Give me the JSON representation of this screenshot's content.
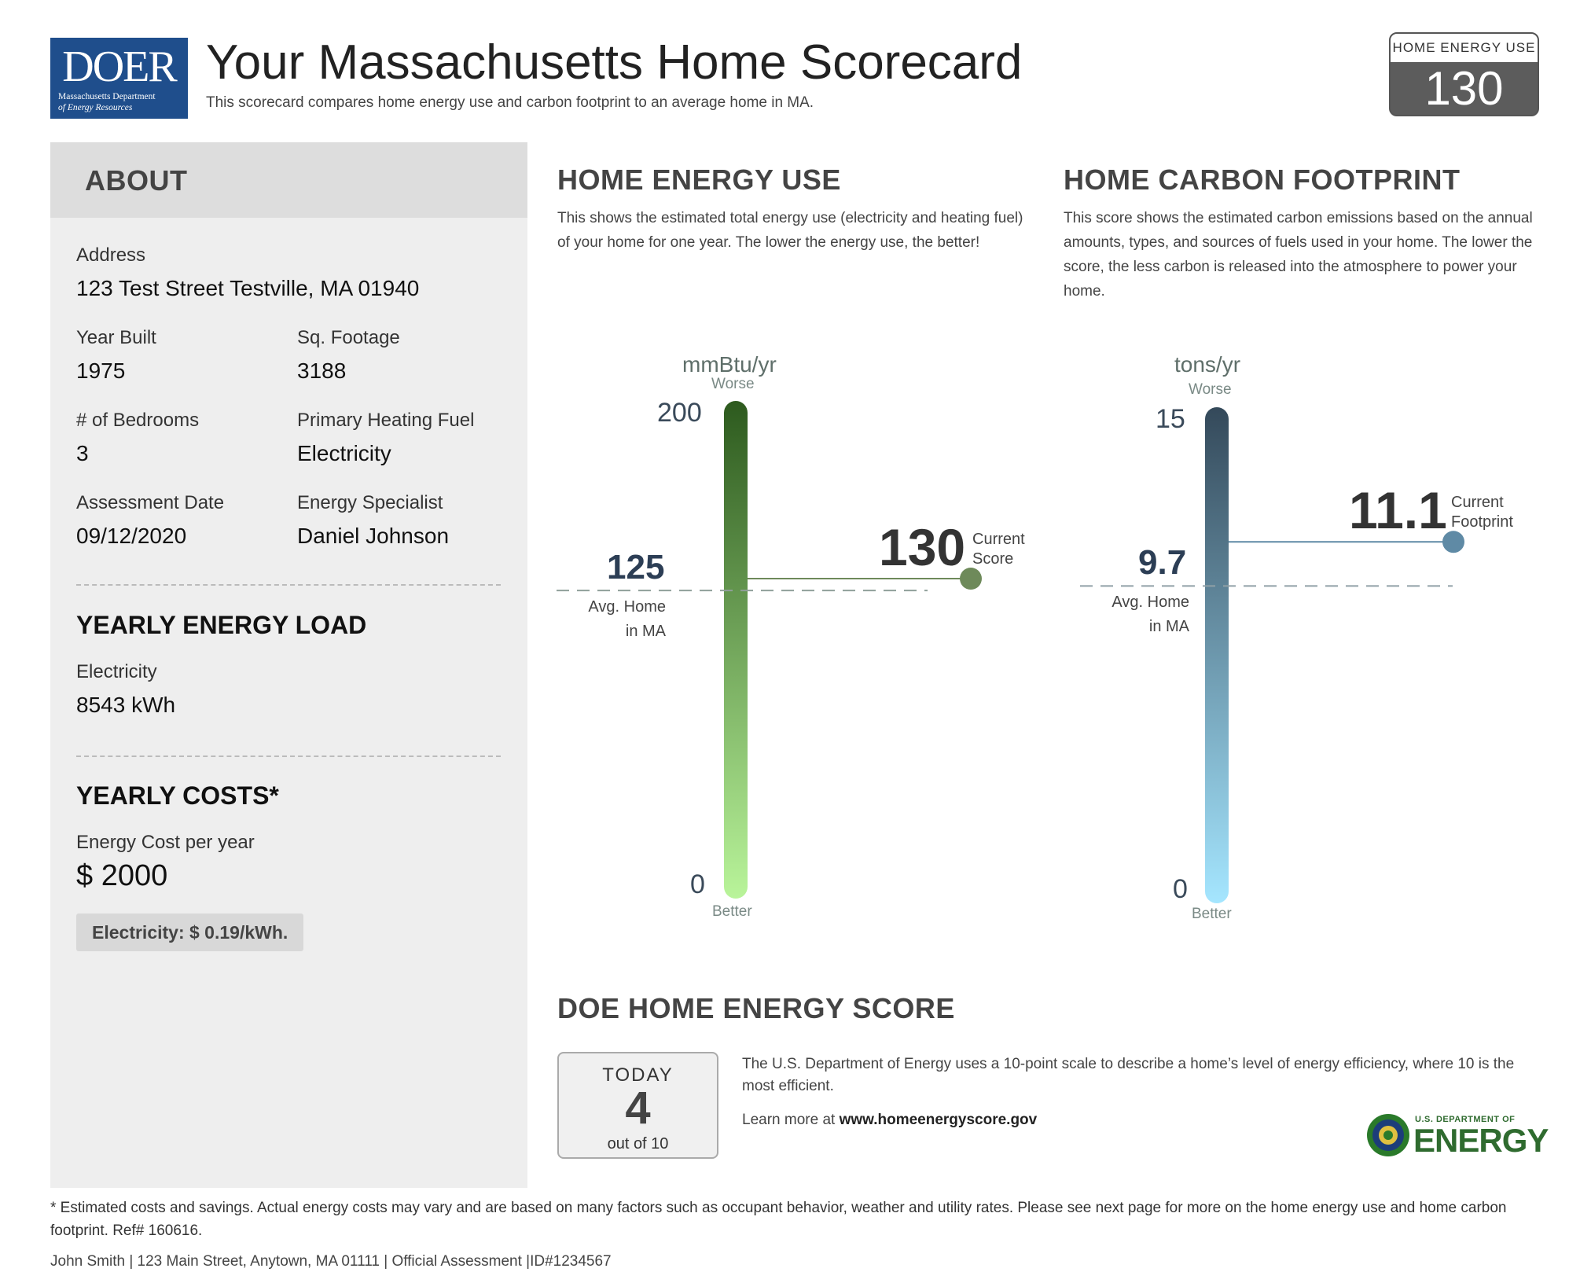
{
  "header": {
    "logo_text": "DOER",
    "logo_subtitle_line1": "Massachusetts Department",
    "logo_subtitle_line2": "of Energy Resources",
    "title": "Your Massachusetts Home Scorecard",
    "subtitle": "This scorecard compares home energy use and carbon footprint to an average home in MA.",
    "score_label": "HOME ENERGY USE",
    "score_value": "130"
  },
  "about": {
    "title": "ABOUT",
    "address_label": "Address",
    "address_value": "123 Test Street Testville, MA 01940",
    "year_built_label": "Year Built",
    "year_built_value": "1975",
    "sqft_label": "Sq. Footage",
    "sqft_value": "3188",
    "bedrooms_label": "# of Bedrooms",
    "bedrooms_value": "3",
    "fuel_label": "Primary Heating Fuel",
    "fuel_value": "Electricity",
    "assessment_label": "Assessment Date",
    "assessment_value": "09/12/2020",
    "specialist_label": "Energy Specialist",
    "specialist_value": "Daniel Johnson"
  },
  "load": {
    "title": "YEARLY ENERGY LOAD",
    "electricity_label": "Electricity",
    "electricity_value": "8543 kWh"
  },
  "costs": {
    "title": "YEARLY COSTS*",
    "cost_label": "Energy Cost per year",
    "cost_value": "$ 2000",
    "rate": "Electricity: $ 0.19/kWh."
  },
  "energy_use": {
    "title": "HOME ENERGY USE",
    "description": "This shows the estimated total energy use (electricity and heating fuel) of your home for one year. The lower the energy use, the better!",
    "unit": "mmBtu/yr",
    "worse": "Worse",
    "better": "Better",
    "max_label": "200",
    "min_label": "0",
    "max": 200,
    "min": 0,
    "avg": 125,
    "avg_text": "125",
    "avg_label_line1": "Avg. Home",
    "avg_label_line2": "in MA",
    "current": 130,
    "current_text": "130",
    "current_label_line1": "Current",
    "current_label_line2": "Score",
    "color_top": "#2d5a1e",
    "color_bottom": "#b9f49a",
    "marker_color": "#6e8a5a"
  },
  "carbon": {
    "title": "HOME CARBON FOOTPRINT",
    "description": "This score shows the estimated carbon emissions based on the annual amounts, types, and sources of fuels used in your home. The lower the score, the less carbon is released into the atmosphere to power your home.",
    "unit": "tons/yr",
    "worse": "Worse",
    "better": "Better",
    "max_label": "15",
    "min_label": "0",
    "max": 15,
    "min": 0,
    "avg": 9.7,
    "avg_text": "9.7",
    "avg_label_line1": "Avg. Home",
    "avg_label_line2": "in MA",
    "current": 11.1,
    "current_text": "11.1",
    "current_label_line1": "Current",
    "current_label_line2": "Footprint",
    "color_top": "#34495a",
    "color_bottom": "#a5e6ff",
    "marker_color": "#5f8aa5"
  },
  "doe": {
    "title": "DOE HOME ENERGY SCORE",
    "today_label": "TODAY",
    "score": "4",
    "out_of": "out of 10",
    "description": "The U.S. Department of Energy uses a 10-point scale to describe a home’s level of energy efficiency, where 10 is the most efficient.",
    "learn_prefix": "Learn more at ",
    "learn_url": "www.homeenergyscore.gov",
    "logo_small": "U.S. DEPARTMENT OF",
    "logo_big": "ENERGY"
  },
  "footnote": "* Estimated costs and savings. Actual energy costs may vary and are based on many factors such as occupant behavior, weather and utility rates. Please see next page for more on the home energy use and home carbon footprint. Ref# 160616.",
  "footer": "John Smith | 123 Main Street, Anytown, MA 01111 | Official Assessment |ID#1234567"
}
